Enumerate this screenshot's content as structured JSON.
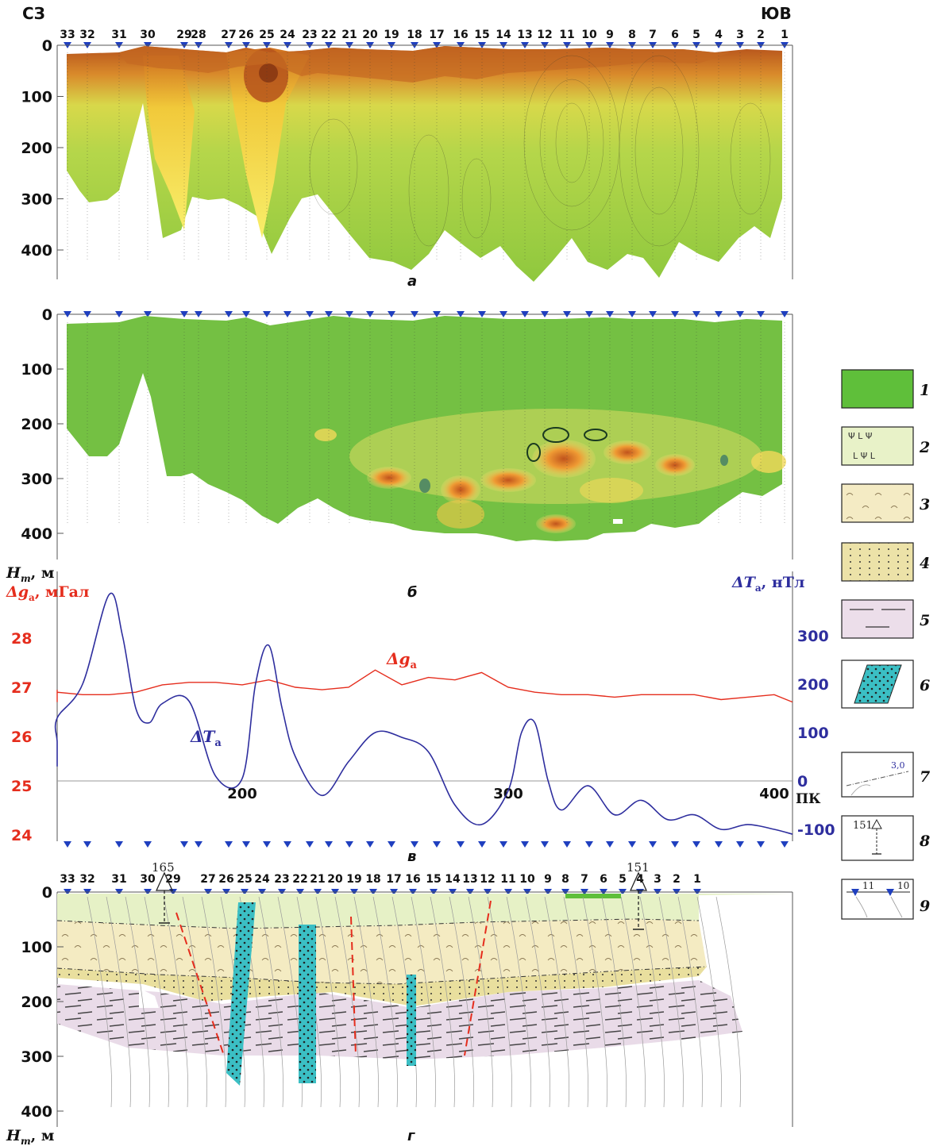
{
  "direction": {
    "left": "СЗ",
    "right": "ЮВ"
  },
  "stations_top": [
    "33",
    "32",
    "31",
    "30",
    "29",
    "28",
    "27",
    "26",
    "25",
    "24",
    "23",
    "22",
    "21",
    "20",
    "19",
    "18",
    "17",
    "16",
    "15",
    "14",
    "13",
    "12",
    "11",
    "10",
    "9",
    "8",
    "7",
    "6",
    "5",
    "4",
    "3",
    "2",
    "1"
  ],
  "stations_bottom": [
    "33",
    "32",
    "31",
    "30",
    "29",
    "27",
    "26",
    "25",
    "24",
    "23",
    "22",
    "21",
    "20",
    "19",
    "18",
    "17",
    "16",
    "15",
    "14",
    "13",
    "12",
    "11",
    "10",
    "9",
    "8",
    "7",
    "6",
    "5",
    "4",
    "3",
    "2",
    "1"
  ],
  "depth_ticks": [
    "0",
    "100",
    "200",
    "300",
    "400"
  ],
  "panel_labels": {
    "a": "а",
    "b": "б",
    "c": "в",
    "d": "г"
  },
  "depth_axis_label": "H",
  "depth_axis_sub": "т",
  "depth_axis_unit": ", м",
  "chart_data": {
    "type": "line",
    "x_axis_label": "ПК",
    "x_ticks": [
      "200",
      "300",
      "400"
    ],
    "left_axis": {
      "symbol": "Δg",
      "sub": "а",
      "unit": ", мГал",
      "ticks": [
        "28",
        "27",
        "26",
        "25",
        "24"
      ],
      "color": "#e52d1d"
    },
    "right_axis": {
      "symbol": "ΔT",
      "sub": "а",
      "unit": ", нТл",
      "ticks": [
        "300",
        "200",
        "100",
        "0",
        "-100"
      ],
      "color": "#2e2e9e"
    },
    "series": [
      {
        "name": "Δg",
        "sub": "а",
        "axis": "left",
        "color": "#e52d1d",
        "x": [
          110,
          120,
          130,
          140,
          150,
          160,
          170,
          180,
          190,
          200,
          210,
          220,
          230,
          240,
          250,
          260,
          270,
          280,
          290,
          300,
          310,
          320,
          330,
          340,
          350,
          360,
          370,
          380,
          390,
          400,
          410
        ],
        "y": [
          26.7,
          26.95,
          26.9,
          26.85,
          26.85,
          26.9,
          27.05,
          27.1,
          27.1,
          27.05,
          27.15,
          27.0,
          26.95,
          27.0,
          27.35,
          27.05,
          27.2,
          27.15,
          27.3,
          27.0,
          26.9,
          26.85,
          26.85,
          26.8,
          26.85,
          26.85,
          26.85,
          26.75,
          26.8,
          26.85,
          26.7
        ]
      },
      {
        "name": "ΔT",
        "sub": "а",
        "axis": "right",
        "color": "#2e2e9e",
        "x": [
          110,
          120,
          130,
          140,
          150,
          155,
          160,
          165,
          170,
          180,
          190,
          200,
          205,
          210,
          215,
          220,
          230,
          240,
          250,
          260,
          270,
          280,
          290,
          300,
          305,
          310,
          315,
          320,
          330,
          340,
          350,
          360,
          370,
          380,
          390,
          400,
          410
        ],
        "y": [
          30,
          80,
          130,
          200,
          385,
          300,
          150,
          120,
          160,
          165,
          10,
          5,
          200,
          280,
          150,
          50,
          -30,
          40,
          100,
          90,
          60,
          -50,
          -90,
          -20,
          100,
          120,
          0,
          -60,
          -10,
          -70,
          -40,
          -80,
          -70,
          -100,
          -90,
          -100,
          -110
        ]
      }
    ]
  },
  "legend": [
    {
      "num": "1",
      "fill": "#5fbf3a"
    },
    {
      "num": "2",
      "fill": "#e8f2c8"
    },
    {
      "num": "3",
      "fill": "#f4ebc4"
    },
    {
      "num": "4",
      "fill": "#ece2a8"
    },
    {
      "num": "5",
      "fill": "#ecdeea"
    },
    {
      "num": "6",
      "fill": "#3bbfc4"
    },
    {
      "num": "7",
      "value": "3,0"
    },
    {
      "num": "8",
      "value": "151"
    },
    {
      "num": "9",
      "left": "11",
      "right": "10"
    }
  ],
  "wells": [
    {
      "name": "165"
    },
    {
      "name": "151"
    }
  ],
  "colors": {
    "green": "#7cc142",
    "yellow": "#f6e050",
    "brown": "#b8531c",
    "blue": "#1f3fbf",
    "red": "#e52d1d"
  }
}
